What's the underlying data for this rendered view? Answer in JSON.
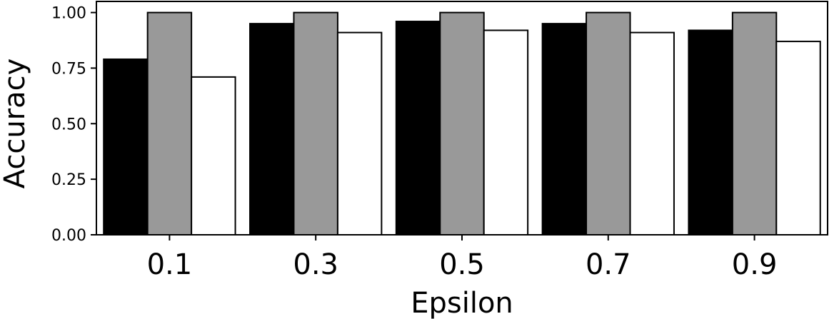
{
  "chart_data": {
    "type": "bar",
    "title": "",
    "xlabel": "Epsilon",
    "ylabel": "Accuracy",
    "categories": [
      "0.1",
      "0.3",
      "0.5",
      "0.7",
      "0.9"
    ],
    "ylim": [
      0,
      1.05
    ],
    "yticks": [
      "0.00",
      "0.25",
      "0.50",
      "0.75",
      "1.00"
    ],
    "grid": false,
    "legend": "none",
    "series": [
      {
        "values": [
          0.79,
          0.95,
          0.96,
          0.95,
          0.92
        ],
        "color": "#000000"
      },
      {
        "values": [
          1.0,
          1.0,
          1.0,
          1.0,
          1.0
        ],
        "color": "#999999"
      },
      {
        "values": [
          0.71,
          0.91,
          0.92,
          0.91,
          0.87
        ],
        "color": "#ffffff"
      }
    ]
  }
}
